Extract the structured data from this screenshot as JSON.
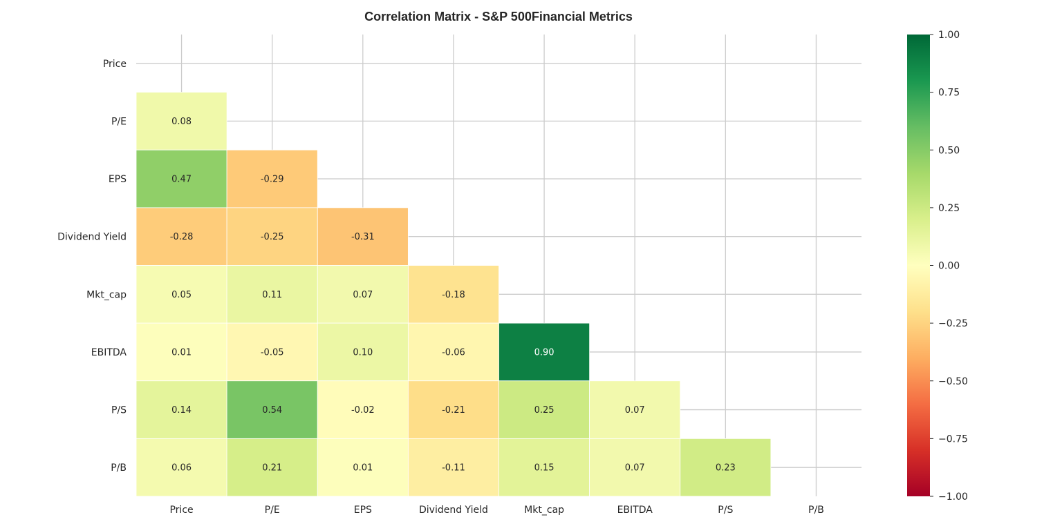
{
  "chart_data": {
    "type": "heatmap",
    "title": "Correlation Matrix - S&P 500Financial Metrics",
    "xlabel": "",
    "ylabel": "",
    "labels": [
      "Price",
      "P/E",
      "EPS",
      "Dividend Yield",
      "Mkt_cap",
      "EBITDA",
      "P/S",
      "P/B"
    ],
    "mask": "upper-triangle-including-diagonal",
    "matrix": [
      [
        null,
        null,
        null,
        null,
        null,
        null,
        null,
        null
      ],
      [
        0.08,
        null,
        null,
        null,
        null,
        null,
        null,
        null
      ],
      [
        0.47,
        -0.29,
        null,
        null,
        null,
        null,
        null,
        null
      ],
      [
        -0.28,
        -0.25,
        -0.31,
        null,
        null,
        null,
        null,
        null
      ],
      [
        0.05,
        0.11,
        0.07,
        -0.18,
        null,
        null,
        null,
        null
      ],
      [
        0.01,
        -0.05,
        0.1,
        -0.06,
        0.9,
        null,
        null,
        null
      ],
      [
        0.14,
        0.54,
        -0.02,
        -0.21,
        0.25,
        0.07,
        null,
        null
      ],
      [
        0.06,
        0.21,
        0.01,
        -0.11,
        0.15,
        0.07,
        0.23,
        null
      ]
    ],
    "annotations": [
      [
        "",
        "",
        "",
        "",
        "",
        "",
        "",
        ""
      ],
      [
        "0.08",
        "",
        "",
        "",
        "",
        "",
        "",
        ""
      ],
      [
        "0.47",
        "-0.29",
        "",
        "",
        "",
        "",
        "",
        ""
      ],
      [
        "-0.28",
        "-0.25",
        "-0.31",
        "",
        "",
        "",
        "",
        ""
      ],
      [
        "0.05",
        "0.11",
        "0.07",
        "-0.18",
        "",
        "",
        "",
        ""
      ],
      [
        "0.01",
        "-0.05",
        "0.10",
        "-0.06",
        "0.90",
        "",
        "",
        ""
      ],
      [
        "0.14",
        "0.54",
        "-0.02",
        "-0.21",
        "0.25",
        "0.07",
        "",
        ""
      ],
      [
        "0.06",
        "0.21",
        "0.01",
        "-0.11",
        "0.15",
        "0.07",
        "0.23",
        ""
      ]
    ],
    "colormap": "RdYlGn",
    "vmin": -1.0,
    "vmax": 1.0,
    "colorbar": {
      "ticks": [
        1.0,
        0.75,
        0.5,
        0.25,
        0.0,
        -0.25,
        -0.5,
        -0.75,
        -1.0
      ],
      "tick_labels": [
        "1.00",
        "0.75",
        "0.50",
        "0.25",
        "0.00",
        "−0.25",
        "−0.50",
        "−0.75",
        "−1.00"
      ],
      "placement": "right"
    },
    "grid": true,
    "colors": {
      "grid": "#cccccc",
      "cell_border": "#ffffff",
      "text_dark": "#262626",
      "text_light": "#ffffff"
    }
  }
}
